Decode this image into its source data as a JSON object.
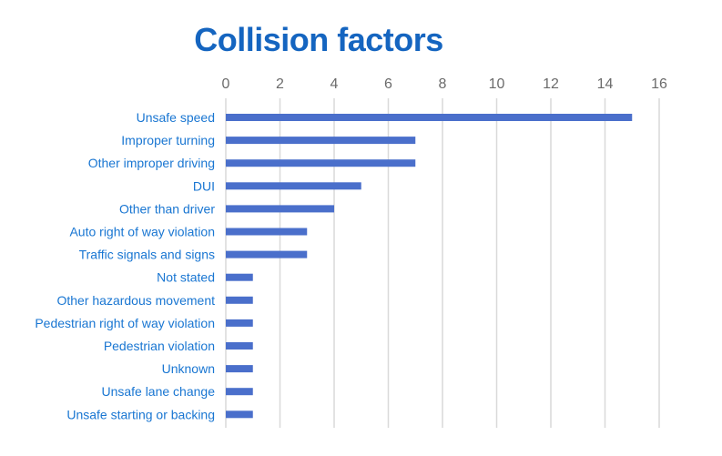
{
  "colors": {
    "title": "#1565c0",
    "label": "#1976d2",
    "tick": "#6b6b6b",
    "bar": "#4a6fcb",
    "grid": "#d9d9d9"
  },
  "chart_data": {
    "type": "bar",
    "orientation": "horizontal",
    "title": "Collision factors",
    "xlabel": "",
    "ylabel": "",
    "xlim": [
      0,
      16
    ],
    "xticks": [
      0,
      2,
      4,
      6,
      8,
      10,
      12,
      14,
      16
    ],
    "x_axis_position": "top",
    "grid": true,
    "legend": "none",
    "categories": [
      "Unsafe speed",
      "Improper turning",
      "Other improper driving",
      "DUI",
      "Other than driver",
      "Auto right of way violation",
      "Traffic signals and signs",
      "Not stated",
      "Other hazardous movement",
      "Pedestrian right of way violation",
      "Pedestrian violation",
      "Unknown",
      "Unsafe lane change",
      "Unsafe starting or backing"
    ],
    "values": [
      15,
      7,
      7,
      5,
      4,
      3,
      3,
      1,
      1,
      1,
      1,
      1,
      1,
      1
    ]
  }
}
